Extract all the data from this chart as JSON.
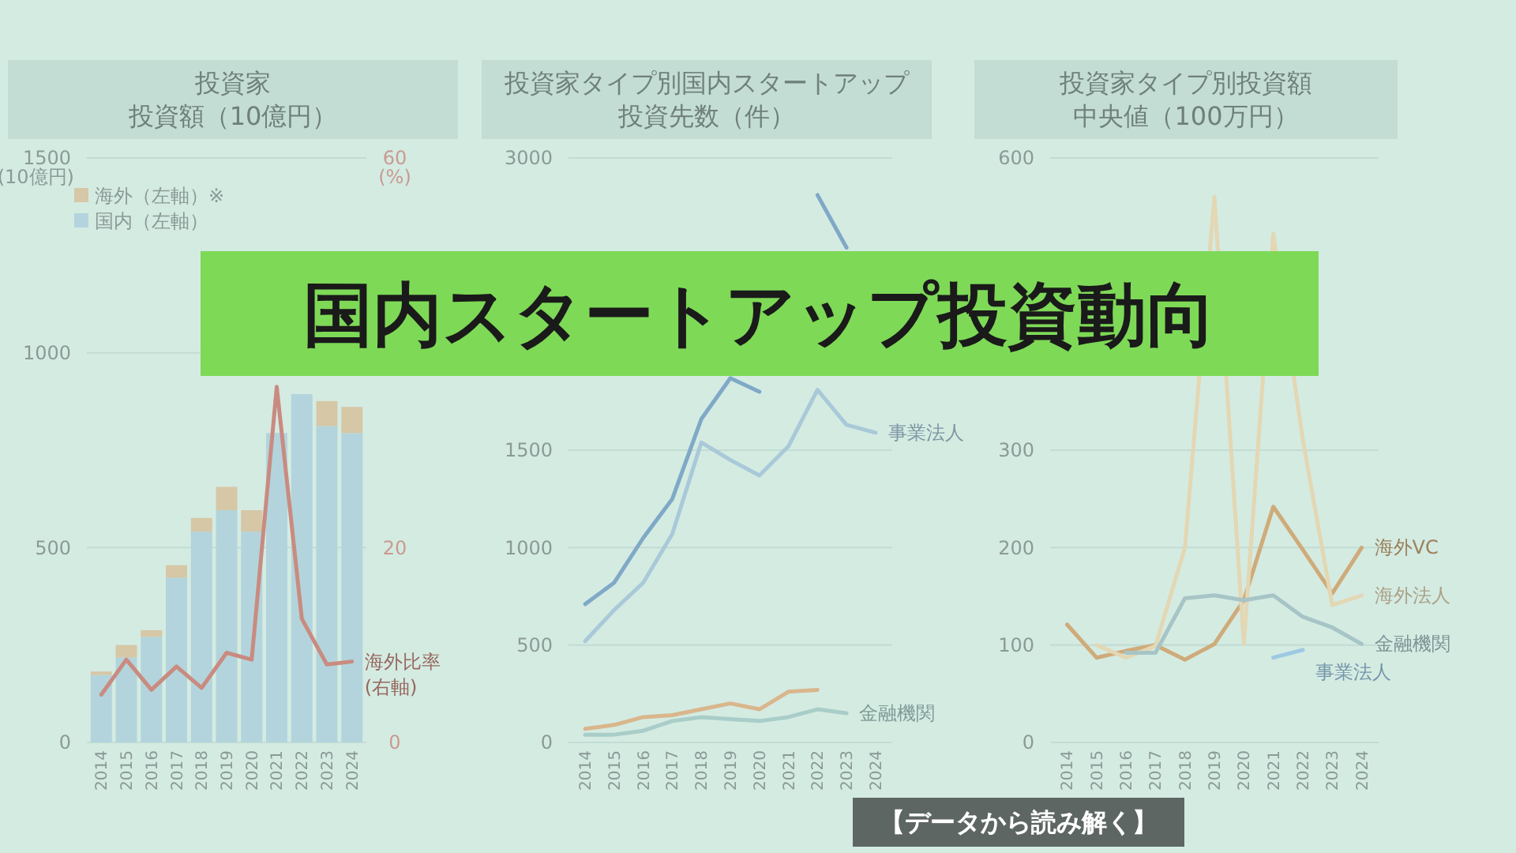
{
  "chart_data": [
    {
      "type": "bar",
      "title": "投資家投資額（10億円）",
      "stacked": true,
      "categories": [
        "2014",
        "2015",
        "2016",
        "2017",
        "2018",
        "2019",
        "2020",
        "2021",
        "2022",
        "2023",
        "2024"
      ],
      "ylim": [
        0,
        1500
      ],
      "yticks": [
        0,
        500,
        1000,
        1500
      ],
      "ylabel": "(10億円)",
      "y2lim": [
        0,
        60
      ],
      "y2ticks": [
        0,
        20,
        60
      ],
      "y2label": "(%)",
      "grid": "y",
      "legend": "top left",
      "series": [
        {
          "name": "国内（左軸）",
          "color": "#b3d4dc",
          "values": [
            173,
            218,
            271,
            423,
            541,
            596,
            541,
            794,
            894,
            812,
            794
          ]
        },
        {
          "name": "海外（左軸）※",
          "color": "#d6c7a6",
          "values": [
            9,
            32,
            17,
            32,
            35,
            60,
            55,
            null,
            null,
            64,
            67
          ]
        },
        {
          "name": "海外比率\n(右軸)",
          "type": "line",
          "axis": "y2",
          "color": "#c98b80",
          "values": [
            4.9,
            8.5,
            5.4,
            7.8,
            5.6,
            9.2,
            8.5,
            36.5,
            12.7,
            8.0,
            8.3
          ]
        }
      ]
    },
    {
      "type": "line",
      "title": "投資家タイプ別国内スタートアップ投資先数（件）",
      "categories": [
        "2014",
        "2015",
        "2016",
        "2017",
        "2018",
        "2019",
        "2020",
        "2021",
        "2022",
        "2023",
        "2024"
      ],
      "ylim": [
        0,
        3000
      ],
      "yticks": [
        0,
        500,
        1000,
        1500,
        3000
      ],
      "grid": "y",
      "series": [
        {
          "color": "#7fa9c6",
          "values": [
            710,
            820,
            1050,
            1250,
            1660,
            1870,
            1800,
            null,
            2810,
            2540,
            null
          ]
        },
        {
          "name": "事業法人",
          "color": "#a9c9d8",
          "values": [
            520,
            680,
            820,
            1070,
            1540,
            1450,
            1370,
            1520,
            1810,
            1630,
            1590
          ]
        },
        {
          "color": "#d9b68c",
          "values": [
            70,
            90,
            130,
            140,
            170,
            200,
            170,
            260,
            270,
            null,
            null
          ]
        },
        {
          "name": "金融機関",
          "color": "#a9cdc8",
          "values": [
            40,
            40,
            60,
            110,
            130,
            120,
            110,
            130,
            170,
            150,
            null
          ]
        }
      ]
    },
    {
      "type": "line",
      "title": "投資家タイプ別投資額中央値（100万円）",
      "categories": [
        "2014",
        "2015",
        "2016",
        "2017",
        "2018",
        "2019",
        "2020",
        "2021",
        "2022",
        "2023",
        "2024"
      ],
      "ylim": [
        0,
        600
      ],
      "yticks": [
        0,
        100,
        200,
        300,
        600
      ],
      "grid": "y",
      "series": [
        {
          "name": "海外VC",
          "color": "#cfab7a",
          "values": [
            121,
            87,
            94,
            100,
            85,
            101,
            146,
            242,
            198,
            153,
            200
          ]
        },
        {
          "name": "海外法人",
          "color": "#e3d7b4",
          "values": [
            null,
            100,
            87,
            99,
            200,
            560,
            101,
            522,
            311,
            141,
            151
          ]
        },
        {
          "name": "金融機関",
          "color": "#a7c4c6",
          "values": [
            null,
            null,
            92,
            92,
            148,
            151,
            146,
            151,
            129,
            118,
            101
          ]
        },
        {
          "name": "事業法人",
          "color": "#9dc9e2",
          "values": [
            null,
            null,
            null,
            null,
            null,
            null,
            null,
            87,
            95,
            null,
            null
          ]
        }
      ]
    },
    {
      "type": "other",
      "title": "国内スタートアップ投資動向",
      "annotations": [
        "【データから読み解く】"
      ]
    }
  ]
}
